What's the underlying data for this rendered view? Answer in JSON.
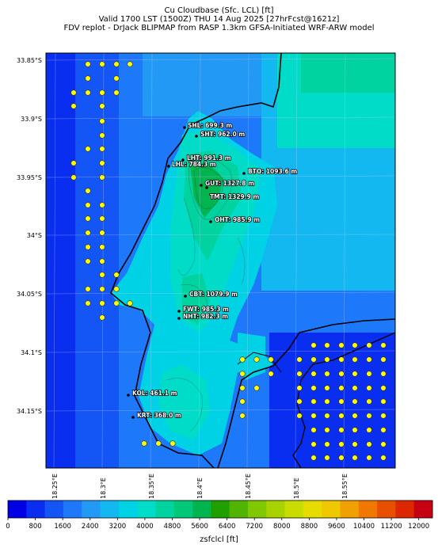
{
  "title": {
    "line1": "Cu Cloudbase (Sfc. LCL) [ft]",
    "line2": "Valid 1700 LST (1500Z) THU 14 Aug 2025 [27hrFcst@1621z]",
    "line3": "FDV replot - DrJack BLIPMAP from RASP 1.3km GFSA-Initiated WRF-ARW model"
  },
  "lat_ticks": [
    "33.85°S",
    "33.9°S",
    "33.95°S",
    "34°S",
    "34.05°S",
    "34.1°S",
    "34.15°S"
  ],
  "lon_ticks": [
    "18.25°E",
    "18.3°E",
    "18.35°E",
    "18.4°E",
    "18.45°E",
    "18.5°E",
    "18.55°E"
  ],
  "stations": [
    {
      "label": "SHL: 699.3 m"
    },
    {
      "label": "SHT: 962.0 m"
    },
    {
      "label": "LHT: 991.3 m"
    },
    {
      "label": "LHL: 784.3 m"
    },
    {
      "label": "BTO: 1093.6 m"
    },
    {
      "label": "GUT: 1327.8 m"
    },
    {
      "label": "TMT: 1329.9 m"
    },
    {
      "label": "OHT: 985.9 m"
    },
    {
      "label": "CBT: 1079.9 m"
    },
    {
      "label": "FWT: 985.3 m"
    },
    {
      "label": "NHT: 982.3 m"
    },
    {
      "label": "KOL: 461.1 m"
    },
    {
      "label": "KRT: 368.0 m"
    }
  ],
  "colorbar": {
    "label": "zsfclcl [ft]",
    "ticks": [
      "0",
      "800",
      "1600",
      "2400",
      "3200",
      "4000",
      "4800",
      "5600",
      "6400",
      "7200",
      "8000",
      "8800",
      "9600",
      "10400",
      "11200",
      "12000"
    ],
    "colors": [
      "#0000e6",
      "#0a2ef0",
      "#1455f5",
      "#1e78fa",
      "#2299f5",
      "#14b8f0",
      "#00d2e6",
      "#00dcc8",
      "#00d2a0",
      "#00c878",
      "#00b450",
      "#20a000",
      "#50b400",
      "#80c800",
      "#a8d200",
      "#c8dc00",
      "#e6dc00",
      "#f0c800",
      "#f0a000",
      "#f07800",
      "#e65000",
      "#dc2800",
      "#c80014"
    ]
  },
  "colors": {
    "sea_deep": "#0a2ef0",
    "sea_mid": "#1e78fa",
    "land_low": "#00d2e6",
    "land_mid": "#00d2a0",
    "land_high": "#00b450",
    "marker": "#ffff00"
  }
}
